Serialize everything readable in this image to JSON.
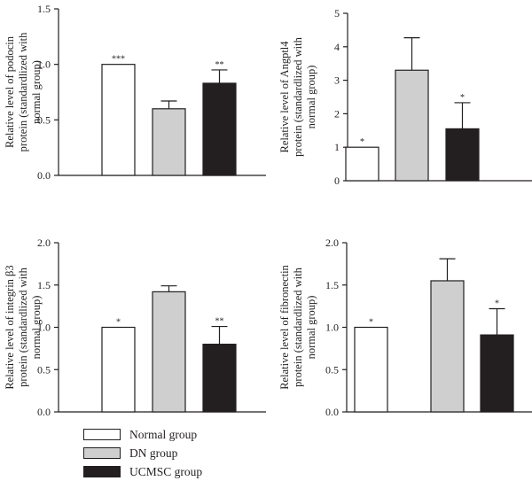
{
  "legend": {
    "items": [
      {
        "label": "Normal group",
        "color": "#ffffff"
      },
      {
        "label": "DN group",
        "color": "#cfcfcf"
      },
      {
        "label": "UCMSC group",
        "color": "#231f20"
      }
    ]
  },
  "chart_data": [
    {
      "type": "bar",
      "categories": [
        "Normal group",
        "DN group",
        "UCMSC group"
      ],
      "values": [
        1.0,
        0.6,
        0.83
      ],
      "errors": [
        0.0,
        0.07,
        0.12
      ],
      "significance": [
        "***",
        "",
        "**"
      ],
      "ylabel_lines": [
        "Relative level of podocin",
        "protein (standardlized with",
        "normal group)"
      ],
      "ylim": [
        0,
        1.5
      ],
      "yticks": [
        0.0,
        0.5,
        1.0,
        1.5
      ],
      "ytick_labels": [
        "0.0",
        "0.5",
        "1.0",
        "1.5"
      ],
      "legend": "bottom-left"
    },
    {
      "type": "bar",
      "categories": [
        "Normal group",
        "DN group",
        "UCMSC group"
      ],
      "values": [
        1.0,
        3.3,
        1.55
      ],
      "errors": [
        0.0,
        0.97,
        0.78
      ],
      "significance": [
        "*",
        "",
        "*"
      ],
      "ylabel_lines": [
        "Relative level of Angptl4",
        "protein (standardlized with",
        "normal group)"
      ],
      "ylim": [
        0,
        5
      ],
      "yticks": [
        0,
        1,
        2,
        3,
        4,
        5
      ],
      "ytick_labels": [
        "0",
        "1",
        "2",
        "3",
        "4",
        "5"
      ]
    },
    {
      "type": "bar",
      "categories": [
        "Normal group",
        "DN group",
        "UCMSC group"
      ],
      "values": [
        1.0,
        1.42,
        0.8
      ],
      "errors": [
        0.0,
        0.07,
        0.21
      ],
      "significance": [
        "*",
        "",
        "**"
      ],
      "ylabel_lines": [
        "Relative level of integrin β3",
        "protein (standardlized with",
        "normal group)"
      ],
      "ylim": [
        0,
        2.0
      ],
      "yticks": [
        0.0,
        0.5,
        1.0,
        1.5,
        2.0
      ],
      "ytick_labels": [
        "0.0",
        "0.5",
        "1.0",
        "1.5",
        "2.0"
      ]
    },
    {
      "type": "bar",
      "categories": [
        "Normal group",
        "DN group",
        "UCMSC group"
      ],
      "values": [
        1.0,
        1.55,
        0.91
      ],
      "errors": [
        0.0,
        0.26,
        0.31
      ],
      "significance": [
        "*",
        "",
        "*"
      ],
      "ylabel_lines": [
        "Relative level of fibronectin",
        "protein (standardlized with",
        "normal group)"
      ],
      "ylim": [
        0,
        2.0
      ],
      "yticks": [
        0.0,
        0.5,
        1.0,
        1.5,
        2.0
      ],
      "ytick_labels": [
        "0.0",
        "0.5",
        "1.0",
        "1.5",
        "2.0"
      ]
    }
  ]
}
